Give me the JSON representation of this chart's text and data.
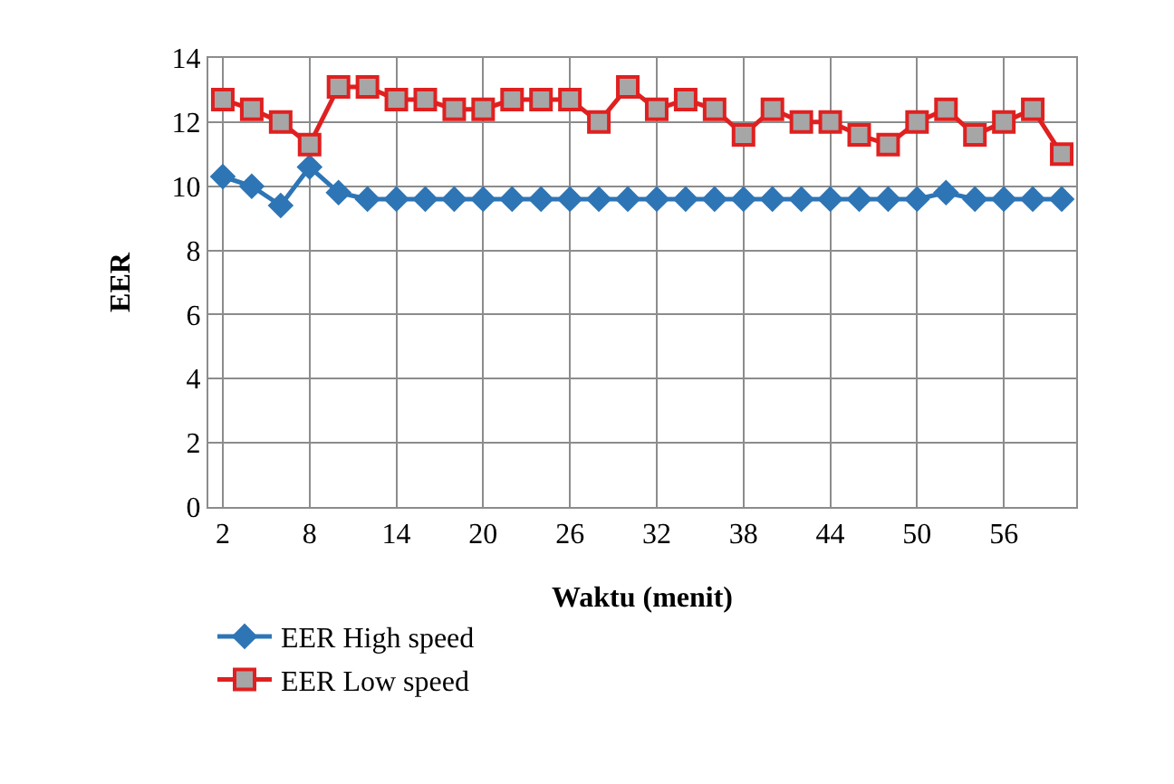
{
  "chart_data": {
    "type": "line",
    "xlabel": "Waktu (menit)",
    "ylabel": "EER",
    "categories": [
      "2",
      null,
      null,
      "8",
      null,
      null,
      "14",
      null,
      null,
      "20",
      null,
      null,
      "26",
      null,
      null,
      "32",
      null,
      null,
      "38",
      null,
      null,
      "44",
      null,
      null,
      "50",
      null,
      null,
      "56",
      null,
      null
    ],
    "series": [
      {
        "name": "EER High speed",
        "color": "#2e75b6",
        "marker": "diamond",
        "values": [
          10.3,
          10.0,
          9.4,
          10.6,
          9.8,
          9.6,
          9.6,
          9.6,
          9.6,
          9.6,
          9.6,
          9.6,
          9.6,
          9.6,
          9.6,
          9.6,
          9.6,
          9.6,
          9.6,
          9.6,
          9.6,
          9.6,
          9.6,
          9.6,
          9.6,
          9.8,
          9.6,
          9.6,
          9.6,
          9.6
        ]
      },
      {
        "name": "EER Low speed",
        "color": "#e02020",
        "marker": "square",
        "values": [
          12.7,
          12.4,
          12.0,
          11.3,
          13.1,
          13.1,
          12.7,
          12.7,
          12.4,
          12.4,
          12.7,
          12.7,
          12.7,
          12.0,
          13.1,
          12.4,
          12.7,
          12.4,
          11.6,
          12.4,
          12.0,
          12.0,
          11.6,
          11.3,
          12.0,
          12.4,
          11.6,
          12.0,
          12.4,
          11.0
        ]
      }
    ],
    "ylim": [
      0,
      14
    ],
    "yticks": [
      0,
      2,
      4,
      6,
      8,
      10,
      12,
      14
    ],
    "grid": true,
    "legend": "bottom left"
  }
}
